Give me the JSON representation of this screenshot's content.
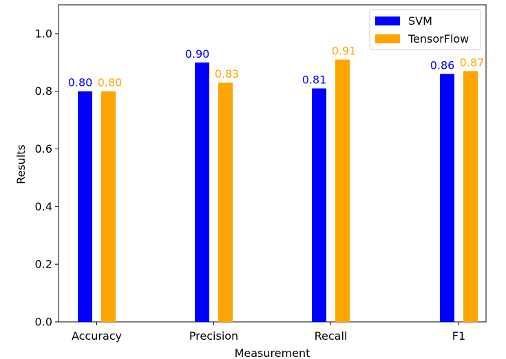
{
  "chart_data": {
    "type": "bar",
    "title": "",
    "xlabel": "Measurement",
    "ylabel": "Results",
    "categories": [
      "Accuracy",
      "Precision",
      "Recall",
      "F1"
    ],
    "series": [
      {
        "name": "SVM",
        "values": [
          0.8,
          0.9,
          0.81,
          0.86
        ],
        "labels": [
          "0.80",
          "0.90",
          "0.81",
          "0.86"
        ],
        "color": "#0000ff"
      },
      {
        "name": "TensorFlow",
        "values": [
          0.8,
          0.83,
          0.91,
          0.87
        ],
        "labels": [
          "0.80",
          "0.83",
          "0.91",
          "0.87"
        ],
        "color": "#ffa500"
      }
    ],
    "ylim": [
      0,
      1.1
    ],
    "yticks": [
      "0.0",
      "0.2",
      "0.4",
      "0.6",
      "0.8",
      "1.0"
    ],
    "grid": false,
    "legend_position": "top-right"
  }
}
